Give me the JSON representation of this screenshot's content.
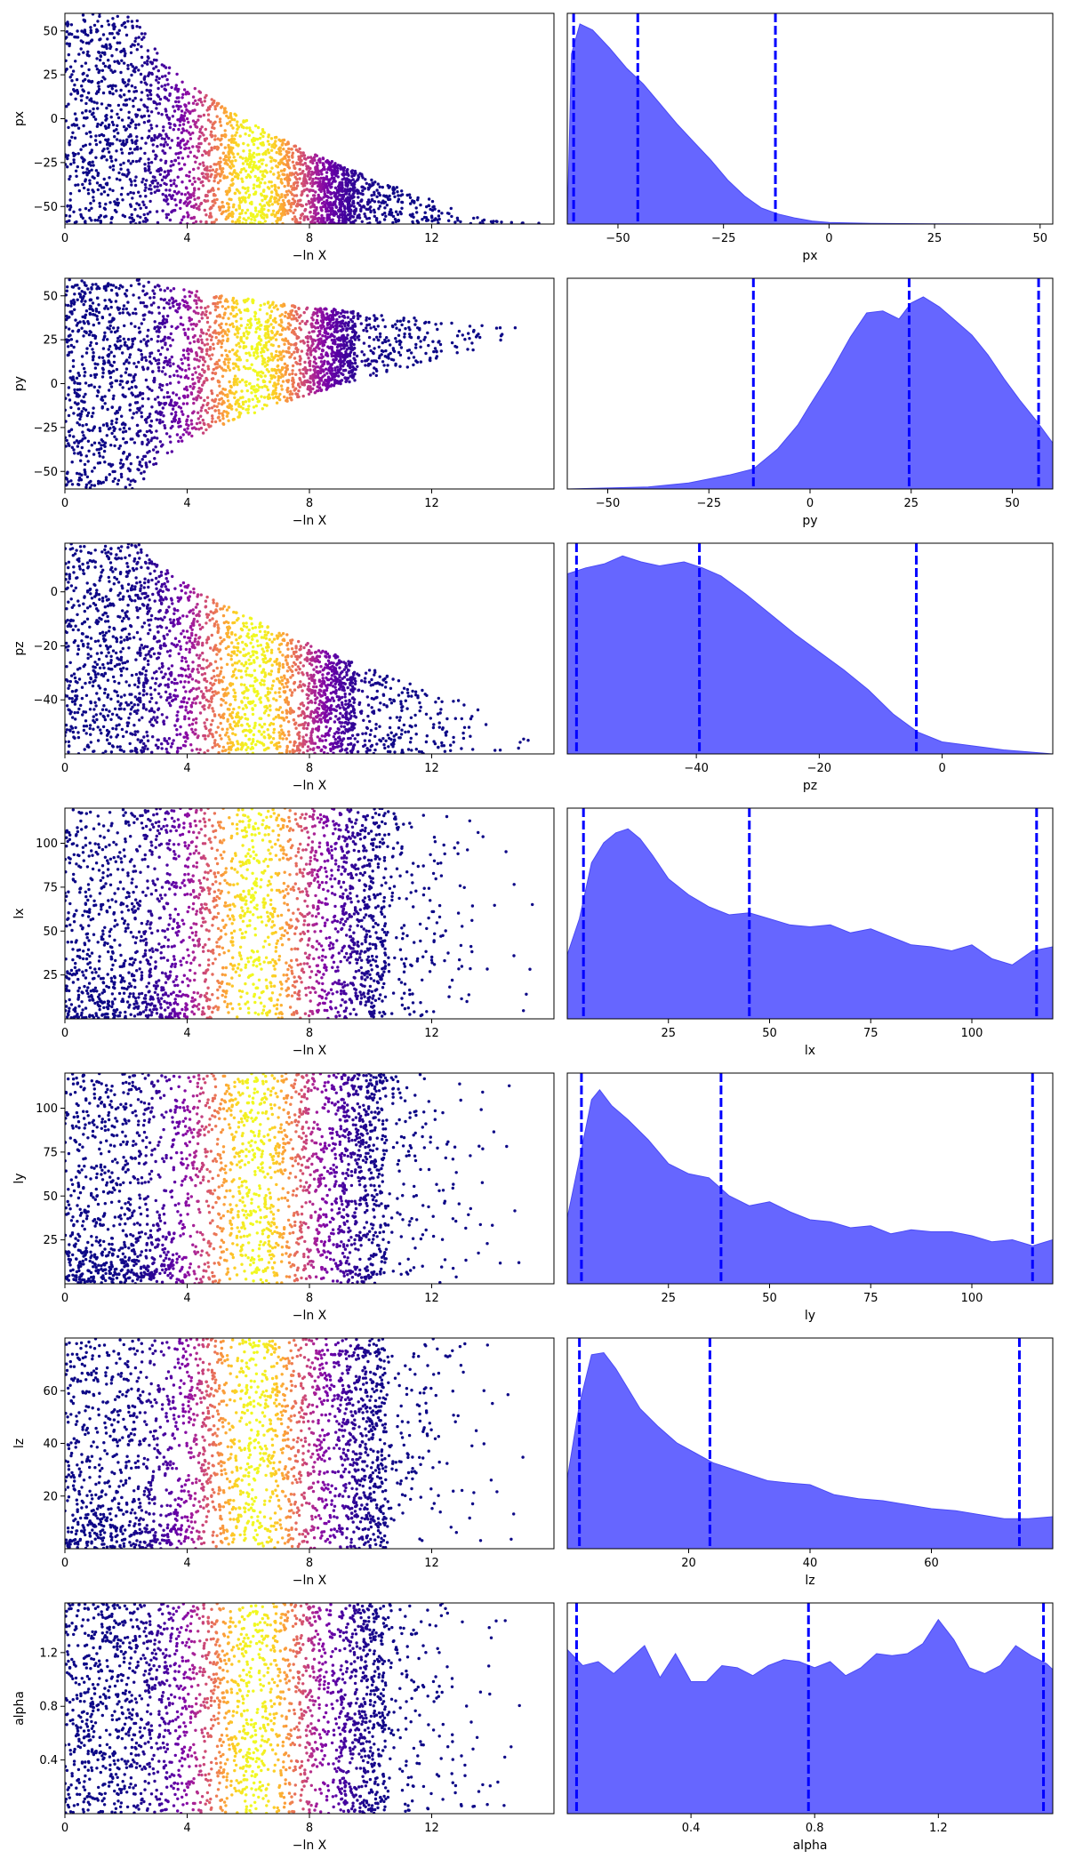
{
  "chart_data": {
    "type": "scatter",
    "trace_x_label": "−ln X",
    "trace_x_ticks": [
      0,
      4,
      8,
      12
    ],
    "trace_x_range": [
      0,
      16
    ],
    "colormap": "plasma",
    "colormap_stops": [
      "#0d0887",
      "#46039f",
      "#7201a8",
      "#9c179e",
      "#bd3786",
      "#d8576b",
      "#ed7953",
      "#fb9f3a",
      "#fdca26",
      "#f0f921"
    ],
    "point_color_scale": {
      "center": 6.2,
      "width": 1.4
    },
    "kde_fill_color": "#6666ff",
    "kde_line_color": "#0000ff",
    "parameters": [
      {
        "name": "px",
        "range": [
          -60,
          60
        ],
        "y_ticks": [
          -50,
          -25,
          0,
          25,
          50
        ],
        "kde_x_ticks": [
          -50,
          -25,
          0,
          25,
          50
        ],
        "kde_x_range": [
          -62,
          53
        ],
        "quantiles": [
          -60.5,
          -45.3,
          -12.7
        ],
        "trace_envelope": {
          "lower": -60,
          "upper_start": 60,
          "upper_end": -58,
          "end_x": 14,
          "shape": "decay"
        },
        "kde_points": [
          [
            -62,
            0
          ],
          [
            -61,
            0.85
          ],
          [
            -59,
            1.0
          ],
          [
            -56,
            0.97
          ],
          [
            -52,
            0.88
          ],
          [
            -48,
            0.78
          ],
          [
            -44,
            0.7
          ],
          [
            -40,
            0.6
          ],
          [
            -36,
            0.5
          ],
          [
            -32,
            0.41
          ],
          [
            -28,
            0.32
          ],
          [
            -24,
            0.22
          ],
          [
            -20,
            0.14
          ],
          [
            -16,
            0.08
          ],
          [
            -12,
            0.05
          ],
          [
            -8,
            0.03
          ],
          [
            -4,
            0.015
          ],
          [
            0,
            0.008
          ],
          [
            10,
            0.003
          ],
          [
            25,
            0.001
          ],
          [
            53,
            0
          ]
        ]
      },
      {
        "name": "py",
        "range": [
          -60,
          60
        ],
        "y_ticks": [
          -50,
          -25,
          0,
          25,
          50
        ],
        "kde_x_ticks": [
          -50,
          -25,
          0,
          25,
          50
        ],
        "kde_x_range": [
          -60,
          60
        ],
        "quantiles": [
          -14,
          24.5,
          56.5
        ],
        "trace_envelope": {
          "lower": -60,
          "upper_start": 60,
          "lower_end": 28,
          "upper_end": 30,
          "end_x": 16,
          "shape": "converge"
        },
        "kde_points": [
          [
            -60,
            0
          ],
          [
            -50,
            0.005
          ],
          [
            -40,
            0.01
          ],
          [
            -30,
            0.03
          ],
          [
            -20,
            0.07
          ],
          [
            -14,
            0.1
          ],
          [
            -8,
            0.2
          ],
          [
            -3,
            0.32
          ],
          [
            0,
            0.42
          ],
          [
            5,
            0.58
          ],
          [
            10,
            0.76
          ],
          [
            14,
            0.88
          ],
          [
            18,
            0.89
          ],
          [
            22,
            0.85
          ],
          [
            25,
            0.93
          ],
          [
            28,
            0.96
          ],
          [
            32,
            0.91
          ],
          [
            36,
            0.84
          ],
          [
            40,
            0.77
          ],
          [
            44,
            0.67
          ],
          [
            48,
            0.55
          ],
          [
            52,
            0.44
          ],
          [
            56,
            0.34
          ],
          [
            60,
            0.23
          ]
        ]
      },
      {
        "name": "pz",
        "range": [
          -60,
          18
        ],
        "y_ticks": [
          -40,
          -20,
          0
        ],
        "kde_x_ticks": [
          -40,
          -20,
          0
        ],
        "kde_x_range": [
          -61,
          18
        ],
        "quantiles": [
          -59.5,
          -39.5,
          -4.2
        ],
        "trace_envelope": {
          "lower": -60,
          "upper_start": 18,
          "upper_end": -52,
          "end_x": 16,
          "shape": "decay_wide"
        },
        "kde_points": [
          [
            -61,
            0.9
          ],
          [
            -58,
            0.93
          ],
          [
            -55,
            0.95
          ],
          [
            -52,
            0.99
          ],
          [
            -49,
            0.96
          ],
          [
            -46,
            0.94
          ],
          [
            -42,
            0.96
          ],
          [
            -39,
            0.93
          ],
          [
            -36,
            0.89
          ],
          [
            -32,
            0.8
          ],
          [
            -28,
            0.7
          ],
          [
            -24,
            0.6
          ],
          [
            -20,
            0.51
          ],
          [
            -16,
            0.42
          ],
          [
            -12,
            0.32
          ],
          [
            -8,
            0.2
          ],
          [
            -4,
            0.11
          ],
          [
            0,
            0.06
          ],
          [
            5,
            0.04
          ],
          [
            10,
            0.02
          ],
          [
            14,
            0.01
          ],
          [
            18,
            0
          ]
        ]
      },
      {
        "name": "lx",
        "range": [
          0,
          120
        ],
        "y_ticks": [
          25,
          50,
          75,
          100
        ],
        "kde_x_ticks": [
          25,
          50,
          75,
          100
        ],
        "kde_x_range": [
          0,
          120
        ],
        "quantiles": [
          4,
          45,
          116
        ],
        "trace_envelope": {
          "lower": 0,
          "upper_start": 120,
          "shape": "uniform"
        },
        "kde_points": [
          [
            0,
            0.32
          ],
          [
            3,
            0.5
          ],
          [
            6,
            0.78
          ],
          [
            9,
            0.88
          ],
          [
            12,
            0.93
          ],
          [
            15,
            0.95
          ],
          [
            18,
            0.9
          ],
          [
            21,
            0.82
          ],
          [
            25,
            0.7
          ],
          [
            30,
            0.62
          ],
          [
            35,
            0.56
          ],
          [
            40,
            0.52
          ],
          [
            45,
            0.53
          ],
          [
            50,
            0.5
          ],
          [
            55,
            0.47
          ],
          [
            60,
            0.46
          ],
          [
            65,
            0.47
          ],
          [
            70,
            0.43
          ],
          [
            75,
            0.45
          ],
          [
            80,
            0.41
          ],
          [
            85,
            0.37
          ],
          [
            90,
            0.36
          ],
          [
            95,
            0.34
          ],
          [
            100,
            0.37
          ],
          [
            105,
            0.3
          ],
          [
            110,
            0.27
          ],
          [
            115,
            0.34
          ],
          [
            120,
            0.36
          ]
        ]
      },
      {
        "name": "ly",
        "range": [
          0,
          120
        ],
        "y_ticks": [
          25,
          50,
          75,
          100
        ],
        "kde_x_ticks": [
          25,
          50,
          75,
          100
        ],
        "kde_x_range": [
          0,
          120
        ],
        "quantiles": [
          3.5,
          38,
          115
        ],
        "trace_envelope": {
          "lower": 0,
          "upper_start": 120,
          "shape": "uniform"
        },
        "kde_points": [
          [
            0,
            0.33
          ],
          [
            3,
            0.62
          ],
          [
            6,
            0.92
          ],
          [
            8,
            0.97
          ],
          [
            11,
            0.89
          ],
          [
            15,
            0.82
          ],
          [
            20,
            0.72
          ],
          [
            25,
            0.6
          ],
          [
            30,
            0.55
          ],
          [
            35,
            0.53
          ],
          [
            40,
            0.44
          ],
          [
            45,
            0.39
          ],
          [
            50,
            0.41
          ],
          [
            55,
            0.36
          ],
          [
            60,
            0.32
          ],
          [
            65,
            0.31
          ],
          [
            70,
            0.28
          ],
          [
            75,
            0.29
          ],
          [
            80,
            0.25
          ],
          [
            85,
            0.27
          ],
          [
            90,
            0.26
          ],
          [
            95,
            0.26
          ],
          [
            100,
            0.24
          ],
          [
            105,
            0.21
          ],
          [
            110,
            0.22
          ],
          [
            115,
            0.19
          ],
          [
            120,
            0.22
          ]
        ]
      },
      {
        "name": "lz",
        "range": [
          0,
          80
        ],
        "y_ticks": [
          20,
          40,
          60
        ],
        "kde_x_ticks": [
          20,
          40,
          60
        ],
        "kde_x_range": [
          0,
          80
        ],
        "quantiles": [
          2,
          23.5,
          74.5
        ],
        "trace_envelope": {
          "lower": 0,
          "upper_start": 80,
          "shape": "uniform"
        },
        "kde_points": [
          [
            0,
            0.35
          ],
          [
            2,
            0.72
          ],
          [
            4,
            0.97
          ],
          [
            6,
            0.98
          ],
          [
            8,
            0.9
          ],
          [
            10,
            0.8
          ],
          [
            12,
            0.7
          ],
          [
            15,
            0.61
          ],
          [
            18,
            0.53
          ],
          [
            21,
            0.48
          ],
          [
            24,
            0.43
          ],
          [
            27,
            0.4
          ],
          [
            30,
            0.37
          ],
          [
            33,
            0.34
          ],
          [
            36,
            0.33
          ],
          [
            40,
            0.32
          ],
          [
            44,
            0.27
          ],
          [
            48,
            0.25
          ],
          [
            52,
            0.24
          ],
          [
            56,
            0.22
          ],
          [
            60,
            0.2
          ],
          [
            64,
            0.19
          ],
          [
            68,
            0.17
          ],
          [
            72,
            0.15
          ],
          [
            76,
            0.15
          ],
          [
            80,
            0.16
          ]
        ]
      },
      {
        "name": "alpha",
        "range": [
          0,
          1.57
        ],
        "y_ticks": [
          0.4,
          0.8,
          1.2
        ],
        "kde_x_ticks": [
          0.4,
          0.8,
          1.2
        ],
        "kde_x_range": [
          0,
          1.57
        ],
        "quantiles": [
          0.03,
          0.78,
          1.54
        ],
        "trace_envelope": {
          "lower": 0,
          "upper_start": 1.57,
          "shape": "uniform"
        },
        "kde_points": [
          [
            0,
            0.82
          ],
          [
            0.05,
            0.74
          ],
          [
            0.1,
            0.76
          ],
          [
            0.15,
            0.7
          ],
          [
            0.2,
            0.77
          ],
          [
            0.25,
            0.84
          ],
          [
            0.3,
            0.68
          ],
          [
            0.35,
            0.8
          ],
          [
            0.4,
            0.66
          ],
          [
            0.45,
            0.66
          ],
          [
            0.5,
            0.74
          ],
          [
            0.55,
            0.73
          ],
          [
            0.6,
            0.69
          ],
          [
            0.65,
            0.74
          ],
          [
            0.7,
            0.77
          ],
          [
            0.75,
            0.76
          ],
          [
            0.8,
            0.73
          ],
          [
            0.85,
            0.76
          ],
          [
            0.9,
            0.69
          ],
          [
            0.95,
            0.73
          ],
          [
            1.0,
            0.8
          ],
          [
            1.05,
            0.79
          ],
          [
            1.1,
            0.8
          ],
          [
            1.15,
            0.85
          ],
          [
            1.2,
            0.97
          ],
          [
            1.25,
            0.87
          ],
          [
            1.3,
            0.73
          ],
          [
            1.35,
            0.7
          ],
          [
            1.4,
            0.74
          ],
          [
            1.45,
            0.84
          ],
          [
            1.5,
            0.79
          ],
          [
            1.55,
            0.75
          ],
          [
            1.57,
            0.72
          ]
        ]
      }
    ]
  }
}
